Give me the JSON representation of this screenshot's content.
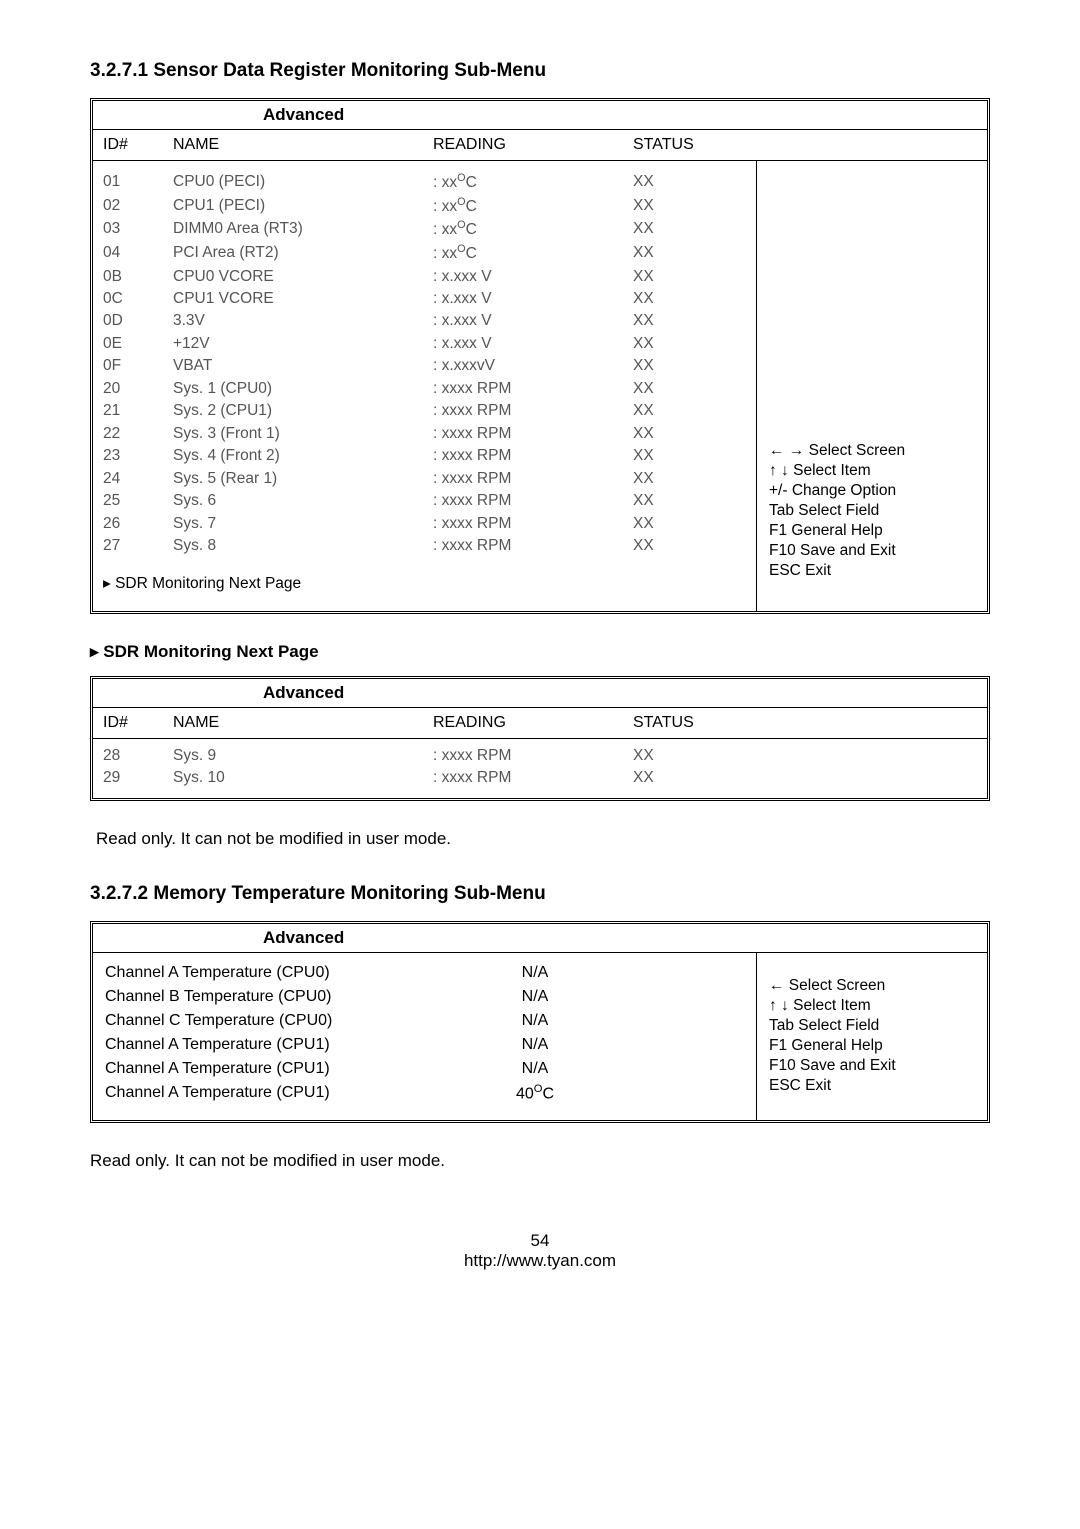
{
  "page": {
    "number": "54",
    "url": "http://www.tyan.com"
  },
  "section1": {
    "title": "3.2.7.1 Sensor Data Register Monitoring Sub-Menu",
    "box_title": "Advanced",
    "headers": {
      "id": "ID#",
      "name": "NAME",
      "reading": "READING",
      "status": "STATUS"
    },
    "rows": [
      {
        "id": "01",
        "name": "CPU0 (PECI)",
        "reading": ": xx°C",
        "status": "XX"
      },
      {
        "id": "02",
        "name": "CPU1 (PECI)",
        "reading": ": xx°C",
        "status": "XX"
      },
      {
        "id": "03",
        "name": "DIMM0 Area (RT3)",
        "reading": ": xx°C",
        "status": "XX"
      },
      {
        "id": "04",
        "name": "PCI Area (RT2)",
        "reading": ": xx°C",
        "status": "XX"
      },
      {
        "id": "0B",
        "name": "CPU0 VCORE",
        "reading": ": x.xxx V",
        "status": "XX"
      },
      {
        "id": "0C",
        "name": "CPU1 VCORE",
        "reading": ": x.xxx V",
        "status": "XX"
      },
      {
        "id": "0D",
        "name": "3.3V",
        "reading": ": x.xxx V",
        "status": "XX"
      },
      {
        "id": "0E",
        "name": "+12V",
        "reading": ": x.xxx V",
        "status": "XX"
      },
      {
        "id": "0F",
        "name": "VBAT",
        "reading": ": x.xxxvV",
        "status": "XX"
      },
      {
        "id": "20",
        "name": "Sys. 1 (CPU0)",
        "reading": ": xxxx RPM",
        "status": "XX"
      },
      {
        "id": "21",
        "name": "Sys. 2 (CPU1)",
        "reading": ": xxxx RPM",
        "status": "XX"
      },
      {
        "id": "22",
        "name": "Sys. 3 (Front 1)",
        "reading": ": xxxx RPM",
        "status": "XX"
      },
      {
        "id": "23",
        "name": "Sys. 4 (Front 2)",
        "reading": ": xxxx RPM",
        "status": "XX"
      },
      {
        "id": "24",
        "name": "Sys. 5 (Rear 1)",
        "reading": ": xxxx RPM",
        "status": "XX"
      },
      {
        "id": "25",
        "name": "Sys. 6",
        "reading": ": xxxx RPM",
        "status": "XX"
      },
      {
        "id": "26",
        "name": "Sys. 7",
        "reading": ": xxxx RPM",
        "status": "XX"
      },
      {
        "id": "27",
        "name": "Sys. 8",
        "reading": ": xxxx RPM",
        "status": "XX"
      }
    ],
    "next_page": "▸ SDR Monitoring Next Page",
    "help": [
      "← → Select Screen",
      "↑ ↓   Select Item",
      "+/-    Change Option",
      "Tab   Select Field",
      "F1     General Help",
      "F10   Save and Exit",
      "ESC  Exit"
    ]
  },
  "section1b": {
    "title": "▸ SDR Monitoring Next Page",
    "box_title": "Advanced",
    "headers": {
      "id": "ID#",
      "name": "NAME",
      "reading": "READING",
      "status": "STATUS"
    },
    "rows": [
      {
        "id": "28",
        "name": "Sys. 9",
        "reading": ": xxxx RPM",
        "status": "XX"
      },
      {
        "id": "29",
        "name": "Sys. 10",
        "reading": ": xxxx RPM",
        "status": "XX"
      }
    ],
    "note": "Read only.  It can not be modified in user mode."
  },
  "section2": {
    "title": "3.2.7.2 Memory Temperature Monitoring Sub-Menu",
    "box_title": "Advanced",
    "rows": [
      {
        "name": "Channel A Temperature (CPU0)",
        "val": "N/A"
      },
      {
        "name": "Channel B Temperature (CPU0)",
        "val": "N/A"
      },
      {
        "name": "Channel C Temperature (CPU0)",
        "val": "N/A"
      },
      {
        "name": "Channel A Temperature (CPU1)",
        "val": "N/A"
      },
      {
        "name": "Channel A Temperature (CPU1)",
        "val": "N/A"
      },
      {
        "name": "Channel A Temperature (CPU1)",
        "val": "40°C"
      }
    ],
    "help": [
      "←   Select Screen",
      "↑ ↓  Select Item",
      "Tab   Select Field",
      "F1     General Help",
      "F10   Save and Exit",
      "ESC  Exit"
    ],
    "note": "Read only.  It can not be modified in user mode."
  }
}
